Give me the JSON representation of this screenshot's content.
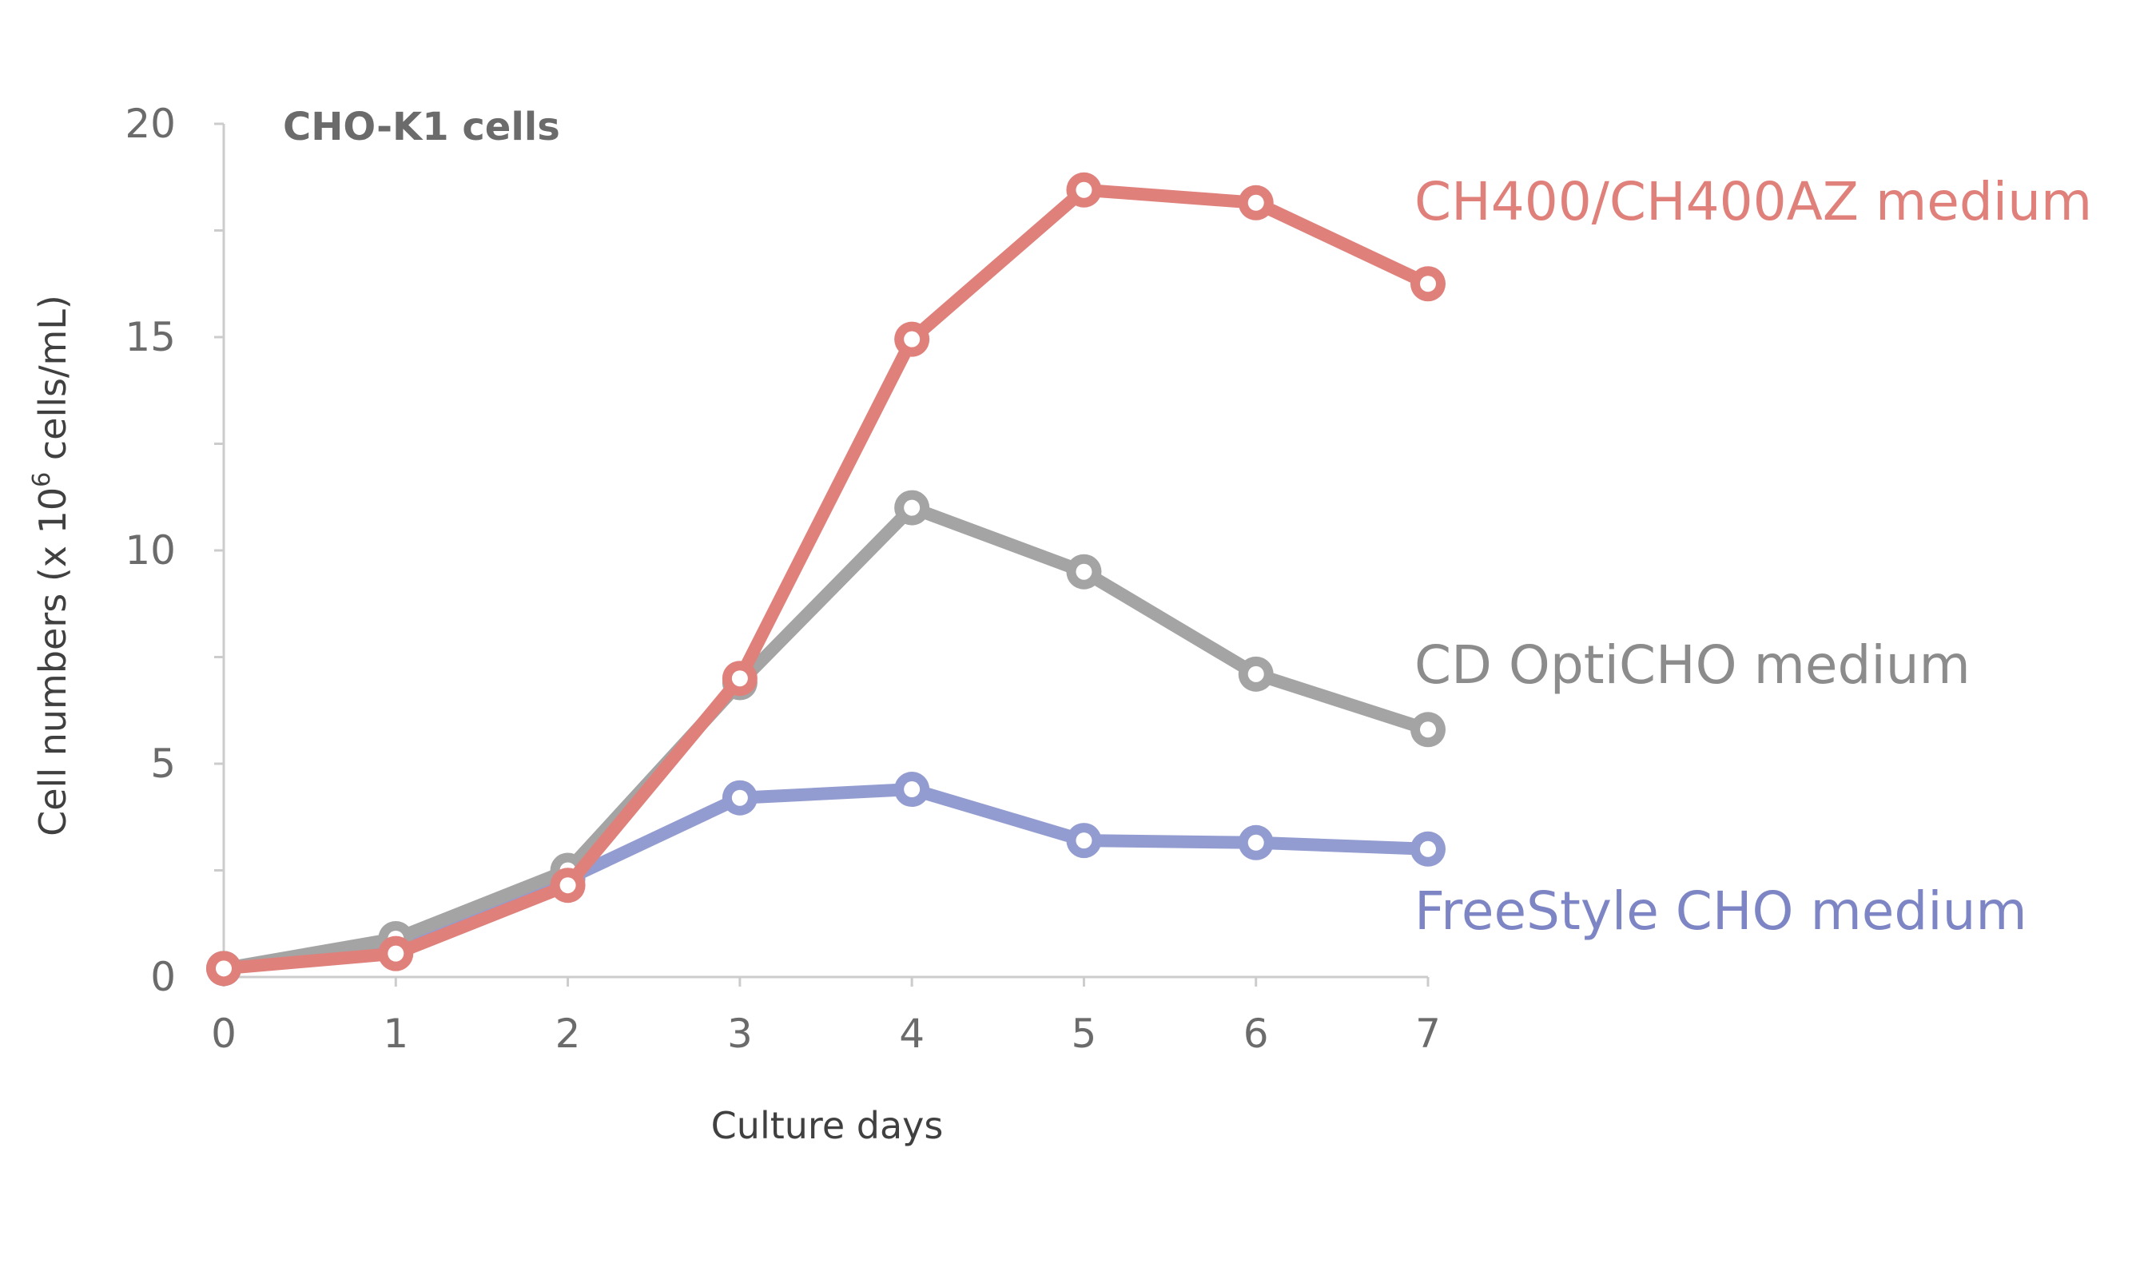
{
  "chart_data": {
    "type": "line",
    "title": "CHO-K1 cells",
    "xlabel": "Culture days",
    "ylabel_main": "Cell numbers (x 10",
    "ylabel_sup": "6",
    "ylabel_tail": " cells/mL)",
    "x": [
      0,
      1,
      2,
      3,
      4,
      5,
      6,
      7
    ],
    "x_tick_labels": [
      "0",
      "1",
      "2",
      "3",
      "4",
      "5",
      "6",
      "7"
    ],
    "y_tick_labels": [
      "0",
      "5",
      "10",
      "15",
      "20"
    ],
    "y_ticks": [
      0,
      5,
      10,
      15,
      20
    ],
    "xlim": [
      0,
      7
    ],
    "ylim": [
      0,
      20
    ],
    "grid": false,
    "legend": "inline labels at right end of each line",
    "series": [
      {
        "name": "FreeStyle CHO medium",
        "color": "#939cd0",
        "label_color": "#7d85c4",
        "values": [
          0.2,
          0.8,
          2.3,
          4.2,
          4.4,
          3.2,
          3.15,
          3.0
        ]
      },
      {
        "name": "CD OptiCHO medium",
        "color": "#a4a4a4",
        "label_color": "#8c8c8c",
        "values": [
          0.2,
          0.9,
          2.5,
          6.9,
          11.0,
          9.5,
          7.1,
          5.8
        ]
      },
      {
        "name": "CH400/CH400AZ medium",
        "color": "#e0807b",
        "label_color": "#e0807b",
        "values": [
          0.2,
          0.55,
          2.15,
          7.0,
          14.95,
          18.45,
          18.15,
          16.25
        ]
      }
    ]
  }
}
